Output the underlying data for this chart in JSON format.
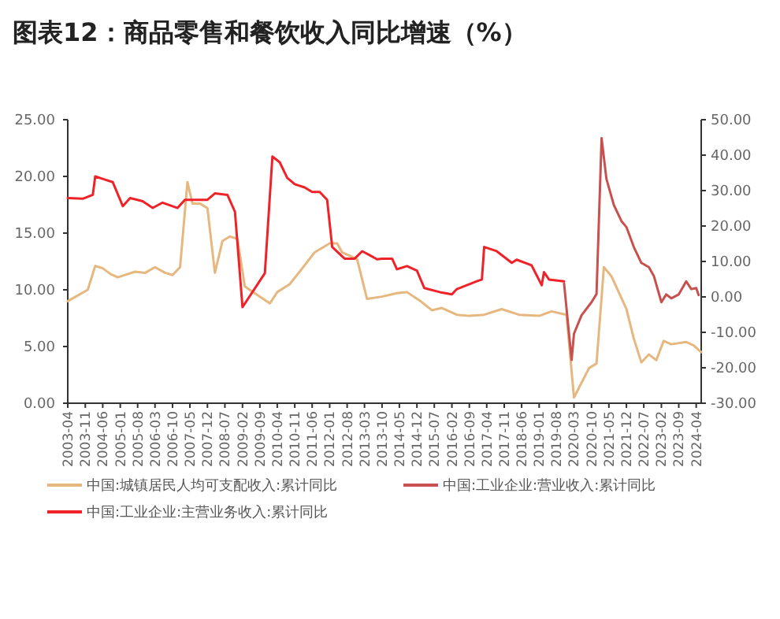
{
  "chart_data": {
    "type": "line",
    "title": "图表12：商品零售和餐饮收入同比增速（%）",
    "xlim": [
      "2003-04",
      "2024-06"
    ],
    "xticks": [
      "2003-04",
      "2003-11",
      "2004-06",
      "2005-01",
      "2005-08",
      "2006-03",
      "2006-10",
      "2007-05",
      "2007-12",
      "2008-07",
      "2009-02",
      "2009-09",
      "2010-04",
      "2010-11",
      "2011-06",
      "2012-01",
      "2012-08",
      "2013-03",
      "2013-10",
      "2014-05",
      "2014-12",
      "2015-07",
      "2016-02",
      "2016-09",
      "2017-04",
      "2017-11",
      "2018-06",
      "2019-01",
      "2019-08",
      "2020-03",
      "2020-10",
      "2021-05",
      "2021-12",
      "2022-07",
      "2023-02",
      "2023-09",
      "2024-04"
    ],
    "ylim": [
      0,
      25
    ],
    "yticks": [
      {
        "value": 0,
        "label": "0.00"
      },
      {
        "value": 5,
        "label": "5.00"
      },
      {
        "value": 10,
        "label": "10.00"
      },
      {
        "value": 15,
        "label": "15.00"
      },
      {
        "value": 20,
        "label": "20.00"
      },
      {
        "value": 25,
        "label": "25.00"
      }
    ],
    "y2lim": [
      -30,
      50
    ],
    "y2ticks": [
      {
        "value": -30,
        "label": "-30.00"
      },
      {
        "value": -20,
        "label": "-20.00"
      },
      {
        "value": -10,
        "label": "-10.00"
      },
      {
        "value": 0,
        "label": "0.00"
      },
      {
        "value": 10,
        "label": "10.00"
      },
      {
        "value": 20,
        "label": "20.00"
      },
      {
        "value": 30,
        "label": "30.00"
      },
      {
        "value": 40,
        "label": "40.00"
      },
      {
        "value": 50,
        "label": "50.00"
      }
    ],
    "grid": false,
    "legend": "bottom",
    "marker": "none",
    "line_style": "solid",
    "series": [
      {
        "name": "中国:城镇居民人均可支配收入:累计同比",
        "color": "#e6b77e",
        "x": [
          "2003-04",
          "2003-12",
          "2004-03",
          "2004-06",
          "2004-09",
          "2004-12",
          "2005-07",
          "2005-11",
          "2006-03",
          "2006-07",
          "2006-10",
          "2007-01",
          "2007-04",
          "2007-06",
          "2007-09",
          "2007-12",
          "2008-03",
          "2008-06",
          "2008-09",
          "2008-12",
          "2009-03",
          "2010-01",
          "2010-04",
          "2010-09",
          "2011-02",
          "2011-07",
          "2012-01",
          "2012-04",
          "2012-06",
          "2012-12",
          "2013-04",
          "2013-10",
          "2014-04",
          "2014-08",
          "2015-02",
          "2015-06",
          "2015-10",
          "2016-04",
          "2016-09",
          "2017-03",
          "2017-10",
          "2018-05",
          "2019-01",
          "2019-06",
          "2019-12",
          "2020-03",
          "2020-09",
          "2020-12",
          "2021-03",
          "2021-06",
          "2021-12",
          "2022-03",
          "2022-06",
          "2022-09",
          "2022-12",
          "2023-03",
          "2023-06",
          "2023-12",
          "2024-03",
          "2024-06"
        ],
        "values": [
          9.0,
          10.0,
          12.1,
          11.9,
          11.4,
          11.1,
          11.6,
          11.5,
          12.0,
          11.5,
          11.3,
          12.0,
          19.5,
          17.6,
          17.6,
          17.2,
          11.5,
          14.3,
          14.7,
          14.5,
          10.3,
          8.8,
          9.8,
          10.5,
          11.9,
          13.3,
          14.1,
          14.1,
          13.3,
          12.7,
          9.2,
          9.4,
          9.7,
          9.8,
          8.9,
          8.2,
          8.4,
          7.8,
          7.7,
          7.8,
          8.3,
          7.8,
          7.7,
          8.1,
          7.8,
          0.5,
          3.1,
          3.5,
          12.0,
          11.2,
          8.3,
          5.7,
          3.6,
          4.3,
          3.8,
          5.5,
          5.2,
          5.4,
          5.1,
          4.5
        ]
      },
      {
        "name": "中国:工业企业:营业收入:累计同比",
        "color": "#c8504e",
        "axis": "y2",
        "x": [
          "2019-11",
          "2020-02",
          "2020-03",
          "2020-06",
          "2020-10",
          "2020-12",
          "2021-02",
          "2021-04",
          "2021-07",
          "2021-10",
          "2021-12",
          "2022-03",
          "2022-06",
          "2022-09",
          "2022-11",
          "2023-02",
          "2023-04",
          "2023-06",
          "2023-09",
          "2023-12",
          "2024-02",
          "2024-04",
          "2024-05"
        ],
        "values": [
          3.8,
          -17.8,
          -10.4,
          -5.2,
          -1.5,
          0.8,
          44.8,
          33.3,
          25.9,
          21.4,
          19.7,
          14.1,
          9.6,
          8.4,
          5.9,
          -1.5,
          0.7,
          -0.4,
          0.7,
          4.4,
          2.2,
          2.5,
          0.5
        ]
      },
      {
        "name": "中国:工业企业:主营业务收入:累计同比",
        "color": "#ee2228",
        "axis": "y2",
        "x": [
          "2003-04",
          "2003-10",
          "2004-02",
          "2004-03",
          "2004-06",
          "2004-10",
          "2005-02",
          "2005-05",
          "2005-10",
          "2006-02",
          "2006-06",
          "2006-12",
          "2007-03",
          "2007-12",
          "2008-03",
          "2008-08",
          "2008-11",
          "2009-02",
          "2009-11",
          "2010-02",
          "2010-05",
          "2010-08",
          "2010-11",
          "2011-03",
          "2011-06",
          "2011-09",
          "2011-12",
          "2012-02",
          "2012-07",
          "2012-11",
          "2013-02",
          "2013-05",
          "2013-08",
          "2013-10",
          "2014-02",
          "2014-04",
          "2014-08",
          "2014-12",
          "2015-03",
          "2015-10",
          "2016-02",
          "2016-04",
          "2016-12",
          "2017-02",
          "2017-03",
          "2017-08",
          "2018-02",
          "2018-04",
          "2018-10",
          "2019-02",
          "2019-03",
          "2019-05",
          "2019-11"
        ],
        "values": [
          27.9,
          27.7,
          28.8,
          34.0,
          33.3,
          32.4,
          25.6,
          27.9,
          27.0,
          25.1,
          26.6,
          25.1,
          27.4,
          27.4,
          29.2,
          28.8,
          24.0,
          -2.9,
          6.7,
          39.6,
          38.0,
          33.6,
          31.8,
          30.9,
          29.6,
          29.6,
          27.4,
          14.1,
          10.8,
          10.8,
          12.9,
          11.8,
          10.6,
          10.8,
          10.8,
          7.8,
          8.7,
          7.4,
          2.5,
          1.2,
          0.7,
          2.2,
          4.4,
          4.9,
          14.1,
          12.9,
          9.6,
          10.5,
          8.9,
          3.3,
          7.0,
          4.9,
          4.4
        ]
      }
    ]
  }
}
